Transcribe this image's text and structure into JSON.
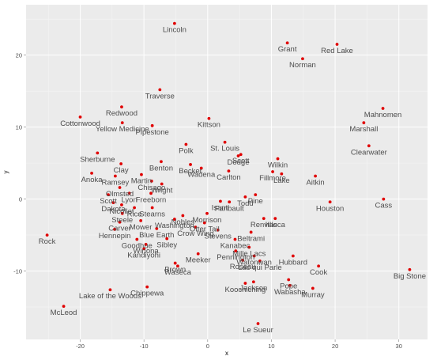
{
  "chart_data": {
    "type": "scatter",
    "xlabel": "x",
    "ylabel": "y",
    "xlim": [
      -28.5,
      34.5
    ],
    "ylim": [
      -19.5,
      27
    ],
    "x_ticks": [
      -20,
      -10,
      0,
      10,
      20,
      30
    ],
    "y_ticks": [
      -10,
      0,
      10,
      20
    ],
    "grid": true,
    "colors": {
      "panel": "#ebebeb",
      "grid_major": "#ffffff",
      "grid_minor": "#f5f5f5",
      "point": "#e00000",
      "label": "#4d4d4d"
    },
    "points": [
      {
        "name": "Lincoln",
        "x": -5.2,
        "y": 24.4
      },
      {
        "name": "Grant",
        "x": 12.5,
        "y": 21.7
      },
      {
        "name": "Red Lake",
        "x": 20.3,
        "y": 21.5
      },
      {
        "name": "Norman",
        "x": 14.9,
        "y": 19.5
      },
      {
        "name": "Traverse",
        "x": -7.5,
        "y": 15.2
      },
      {
        "name": "Mahnomen",
        "x": 27.5,
        "y": 12.6
      },
      {
        "name": "Redwood",
        "x": -13.5,
        "y": 12.8
      },
      {
        "name": "Cottonwood",
        "x": -20.0,
        "y": 11.4
      },
      {
        "name": "Yellow Medicine",
        "x": -13.4,
        "y": 10.6
      },
      {
        "name": "Pipestone",
        "x": -8.7,
        "y": 10.2
      },
      {
        "name": "Kittson",
        "x": 0.2,
        "y": 11.2
      },
      {
        "name": "Marshall",
        "x": 24.5,
        "y": 10.6
      },
      {
        "name": "Clearwater",
        "x": 25.3,
        "y": 7.4
      },
      {
        "name": "Polk",
        "x": -3.4,
        "y": 7.6
      },
      {
        "name": "St. Louis",
        "x": 2.7,
        "y": 7.9
      },
      {
        "name": "Sherburne",
        "x": -17.3,
        "y": 6.4
      },
      {
        "name": "Scott",
        "x": 5.2,
        "y": 6.2
      },
      {
        "name": "Dodge",
        "x": 4.8,
        "y": 6.0
      },
      {
        "name": "Benton",
        "x": -7.3,
        "y": 5.2
      },
      {
        "name": "Wilkin",
        "x": 11.0,
        "y": 5.6
      },
      {
        "name": "Clay",
        "x": -13.6,
        "y": 4.9
      },
      {
        "name": "Becker",
        "x": -2.7,
        "y": 4.8
      },
      {
        "name": "Wadena",
        "x": -1.0,
        "y": 4.3
      },
      {
        "name": "Carlton",
        "x": 3.3,
        "y": 3.9
      },
      {
        "name": "Fillmore",
        "x": 10.2,
        "y": 3.8
      },
      {
        "name": "Lake",
        "x": 11.6,
        "y": 3.5
      },
      {
        "name": "Aitkin",
        "x": 16.9,
        "y": 3.2
      },
      {
        "name": "Anoka",
        "x": -18.2,
        "y": 3.6
      },
      {
        "name": "Ramsey",
        "x": -14.5,
        "y": 3.2
      },
      {
        "name": "Martin",
        "x": -10.4,
        "y": 3.4
      },
      {
        "name": "Chisago",
        "x": -8.8,
        "y": 2.5
      },
      {
        "name": "Wright",
        "x": -7.2,
        "y": 2.1
      },
      {
        "name": "Olmsted",
        "x": -13.8,
        "y": 1.6
      },
      {
        "name": "Scott",
        "x": -15.6,
        "y": 0.6
      },
      {
        "name": "Lyon",
        "x": -12.3,
        "y": 0.8
      },
      {
        "name": "Freeborn",
        "x": -8.9,
        "y": 0.8
      },
      {
        "name": "Isanti",
        "x": 2.0,
        "y": -0.3
      },
      {
        "name": "Faribault",
        "x": 3.4,
        "y": -0.4
      },
      {
        "name": "Pine",
        "x": 7.5,
        "y": 0.6
      },
      {
        "name": "Houston",
        "x": 19.2,
        "y": -0.4
      },
      {
        "name": "Cass",
        "x": 27.6,
        "y": 0.0
      },
      {
        "name": "Dakota",
        "x": -14.8,
        "y": -0.5
      },
      {
        "name": "Nicollet",
        "x": -13.5,
        "y": -0.8
      },
      {
        "name": "Rice",
        "x": -11.5,
        "y": -1.2
      },
      {
        "name": "Todd",
        "x": 5.9,
        "y": 0.3
      },
      {
        "name": "Stearns",
        "x": -8.7,
        "y": -1.2
      },
      {
        "name": "Steele",
        "x": -13.4,
        "y": -2.0
      },
      {
        "name": "Renville",
        "x": 8.8,
        "y": -2.7
      },
      {
        "name": "Itasca",
        "x": 10.6,
        "y": -2.7
      },
      {
        "name": "Carver",
        "x": -13.8,
        "y": -3.2
      },
      {
        "name": "Mower",
        "x": -10.5,
        "y": -3.0
      },
      {
        "name": "Morrison",
        "x": -0.1,
        "y": -2.0
      },
      {
        "name": "Nobles",
        "x": -3.9,
        "y": -2.3
      },
      {
        "name": "Washington",
        "x": -5.2,
        "y": -2.8
      },
      {
        "name": "Otter Tail",
        "x": -0.5,
        "y": -3.3
      },
      {
        "name": "Hennepin",
        "x": -14.6,
        "y": -4.2
      },
      {
        "name": "Blue Earth",
        "x": -8.0,
        "y": -4.1
      },
      {
        "name": "Crow Wing",
        "x": -1.9,
        "y": -3.9
      },
      {
        "name": "Stevens",
        "x": 1.6,
        "y": -4.3
      },
      {
        "name": "Beltrami",
        "x": 6.8,
        "y": -4.6
      },
      {
        "name": "Goodhue",
        "x": -11.1,
        "y": -5.6
      },
      {
        "name": "Sibley",
        "x": -6.4,
        "y": -5.5
      },
      {
        "name": "Kanabec",
        "x": 4.3,
        "y": -5.6
      },
      {
        "name": "Winona",
        "x": -9.7,
        "y": -6.3
      },
      {
        "name": "Kandiyohi",
        "x": -10.0,
        "y": -6.9
      },
      {
        "name": "Mille Lacs",
        "x": 6.5,
        "y": -6.7
      },
      {
        "name": "Pennington",
        "x": 4.4,
        "y": -7.2
      },
      {
        "name": "Meeker",
        "x": -1.5,
        "y": -7.6
      },
      {
        "name": "Watonwan",
        "x": 7.3,
        "y": -7.9
      },
      {
        "name": "Hubbard",
        "x": 13.4,
        "y": -7.9
      },
      {
        "name": "Roseau",
        "x": 5.5,
        "y": -8.5
      },
      {
        "name": "Lac qui Parle",
        "x": 8.2,
        "y": -8.6
      },
      {
        "name": "Brown",
        "x": -5.1,
        "y": -8.9
      },
      {
        "name": "Waseca",
        "x": -4.7,
        "y": -9.3
      },
      {
        "name": "Cook",
        "x": 17.4,
        "y": -9.3
      },
      {
        "name": "Big Stone",
        "x": 31.7,
        "y": -9.8
      },
      {
        "name": "Koochiching",
        "x": 5.9,
        "y": -11.7
      },
      {
        "name": "Jackson",
        "x": 7.2,
        "y": -11.5
      },
      {
        "name": "Pope",
        "x": 12.7,
        "y": -11.2
      },
      {
        "name": "Wabasha",
        "x": 12.9,
        "y": -12.0
      },
      {
        "name": "Murray",
        "x": 16.5,
        "y": -12.4
      },
      {
        "name": "Chippewa",
        "x": -9.5,
        "y": -12.2
      },
      {
        "name": "Lake of the Woods",
        "x": -15.3,
        "y": -12.6
      },
      {
        "name": "Rock",
        "x": -25.2,
        "y": -5.0
      },
      {
        "name": "McLeod",
        "x": -22.6,
        "y": -14.9
      },
      {
        "name": "Le Sueur",
        "x": 7.9,
        "y": -17.3
      }
    ]
  }
}
